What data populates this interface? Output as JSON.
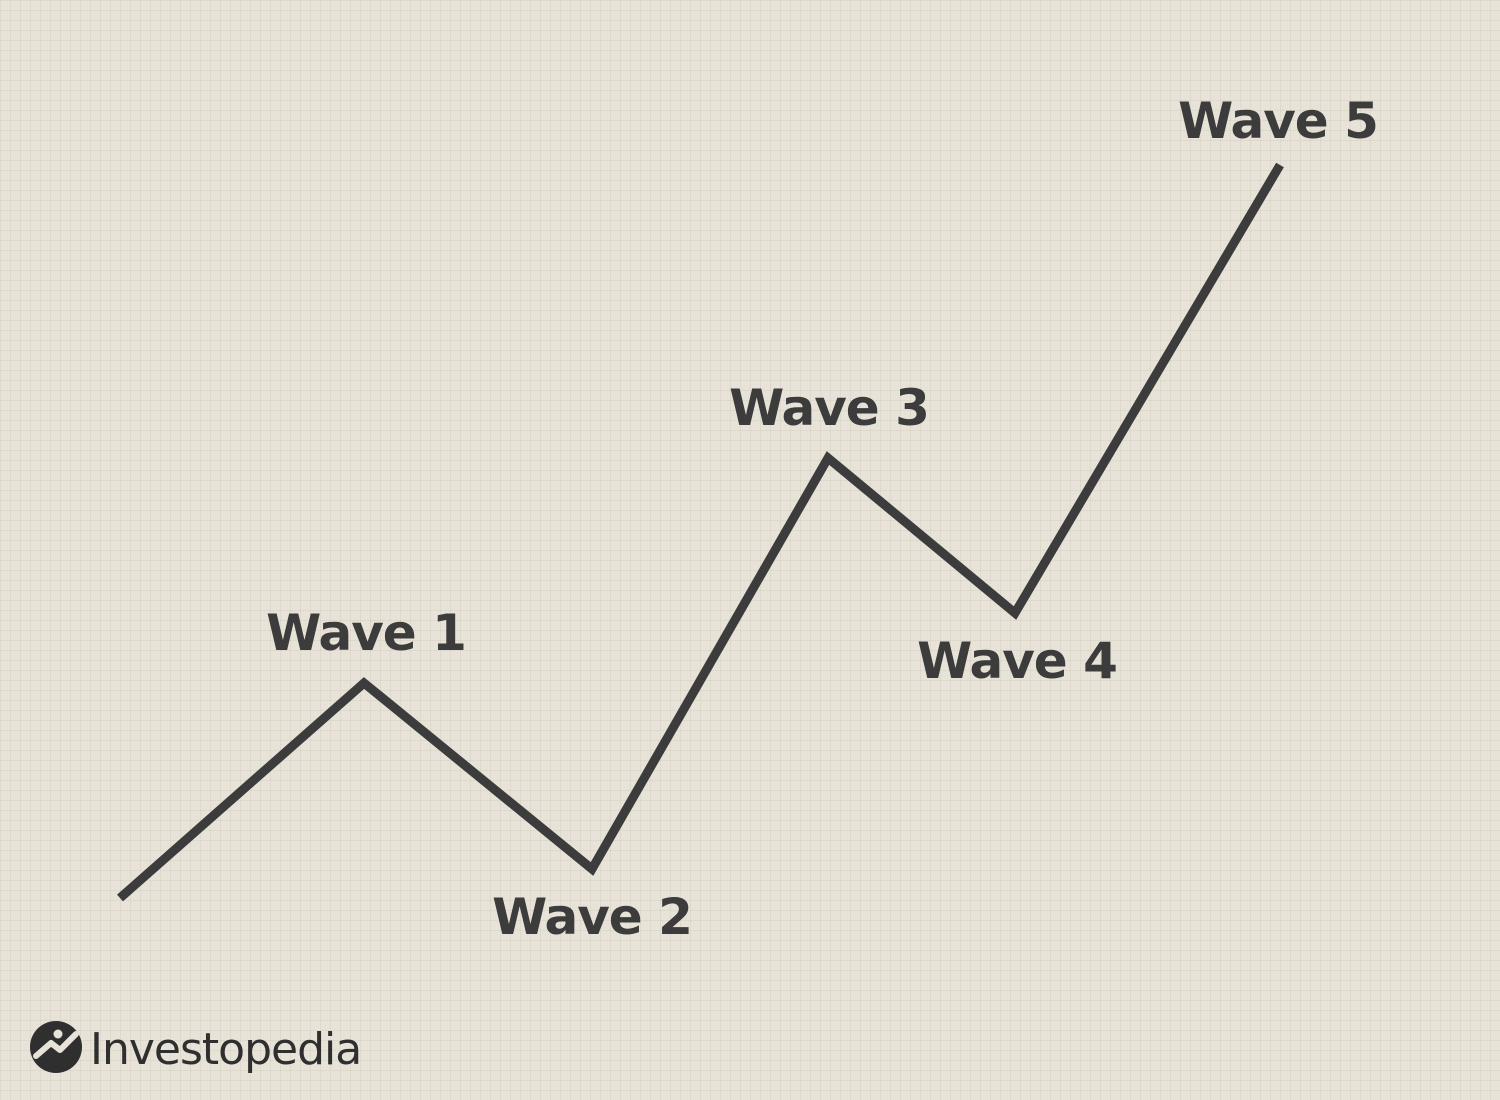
{
  "labels": [
    "Wave 1",
    "Wave 2",
    "Wave 3",
    "Wave 4",
    "Wave 5"
  ],
  "logo": {
    "text": "Investopedia",
    "icon": "investopedia-logo-icon",
    "color": "#2f2f2f"
  },
  "colors": {
    "background": "#e8e3d9",
    "line": "#3c3c3c",
    "text": "#3c3c3c"
  }
}
